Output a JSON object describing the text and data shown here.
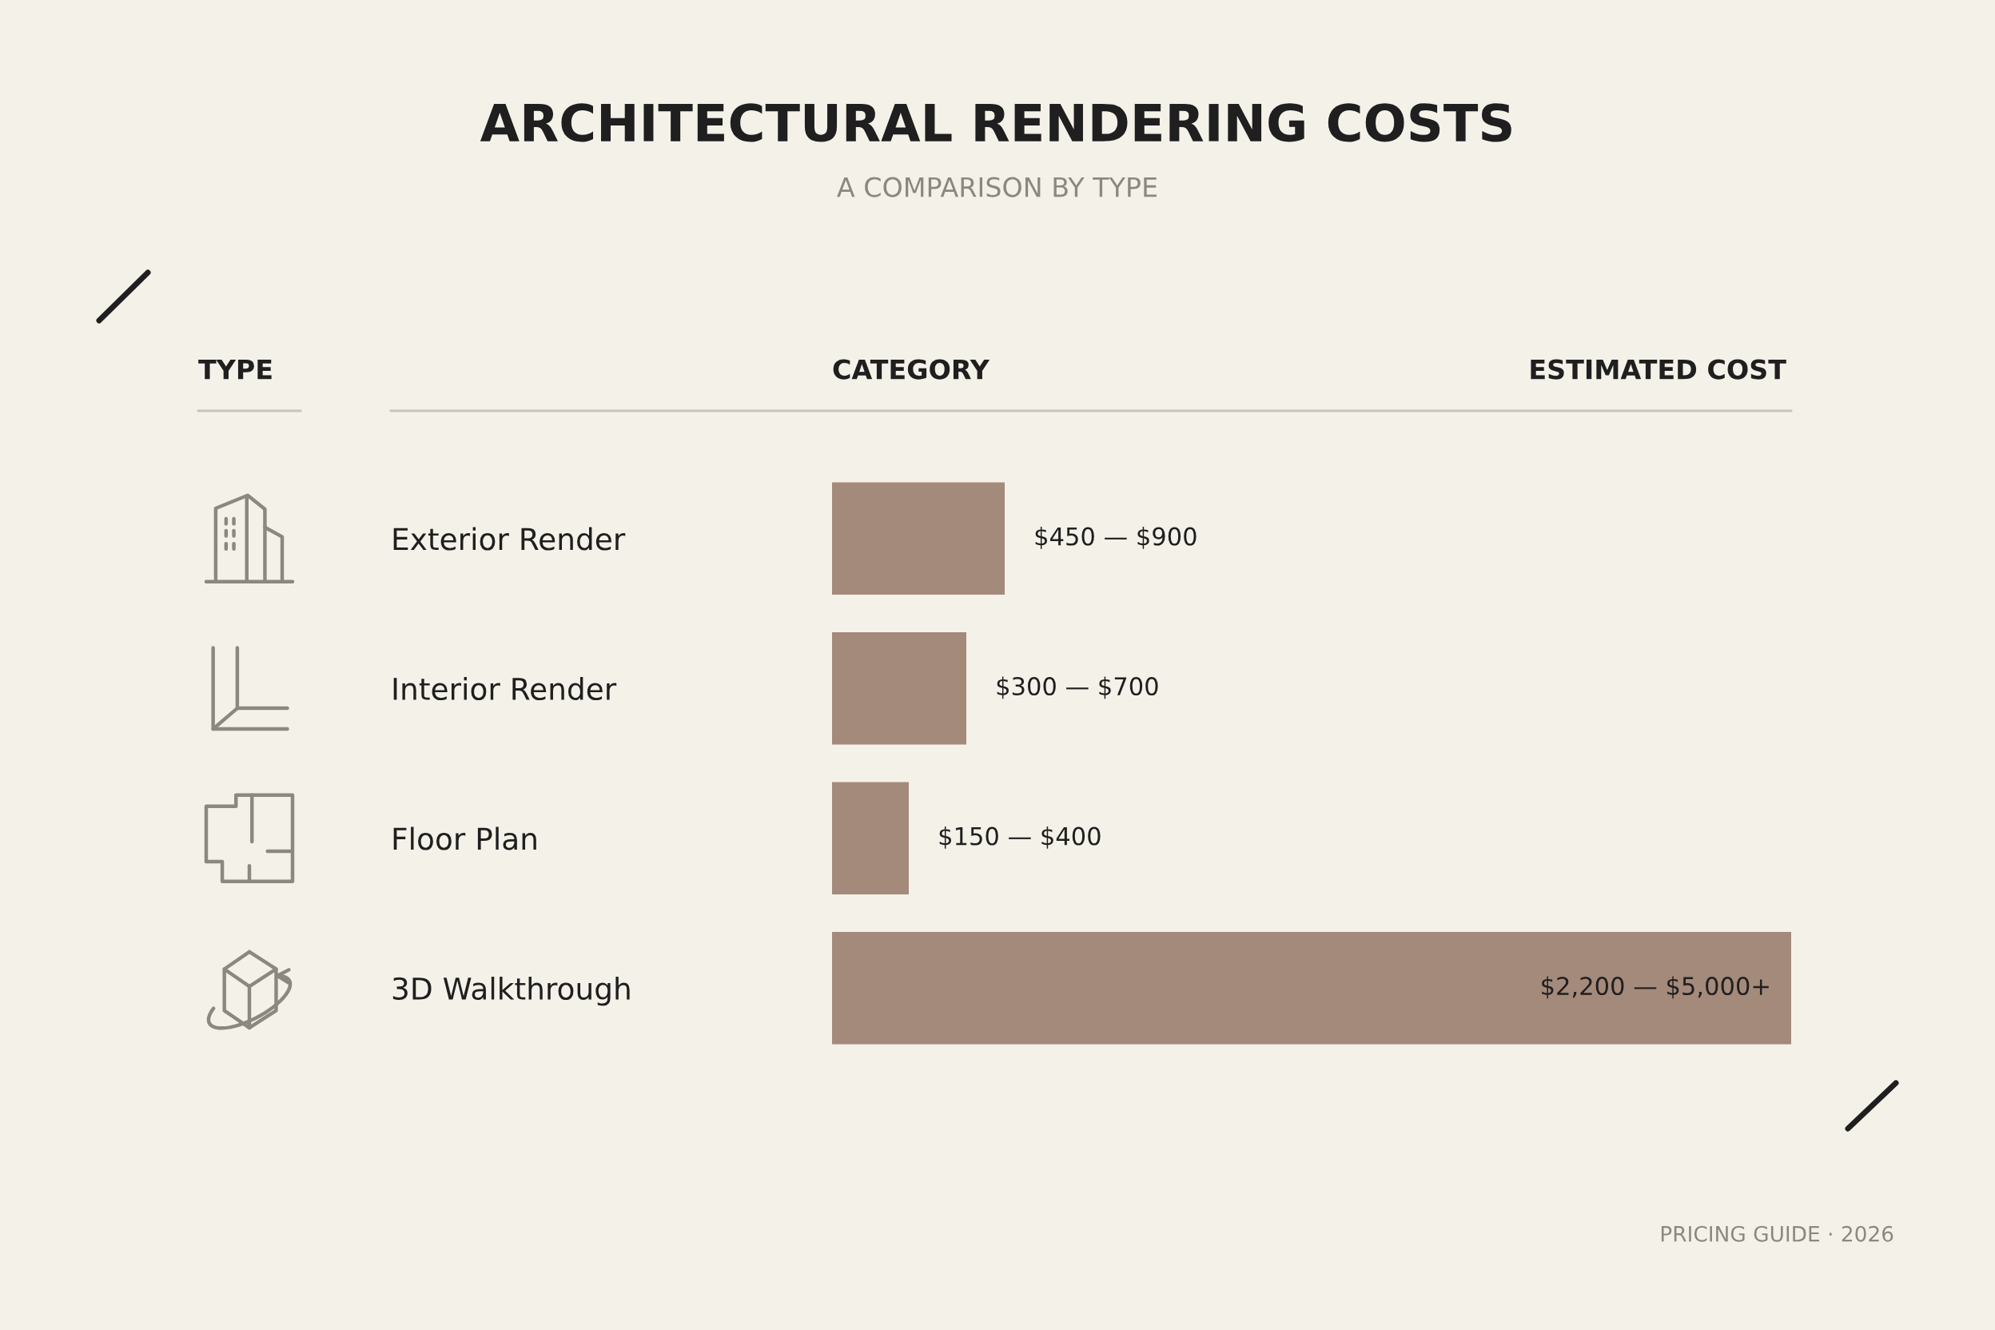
{
  "chart_data": {
    "type": "bar",
    "title": "ARCHITECTURAL RENDERING COSTS",
    "subtitle": "A COMPARISON BY TYPE",
    "orientation": "horizontal",
    "tick_labels": "y",
    "categories": [
      "Exterior Render",
      "Interior Render",
      "Floor Plan",
      "3D Walkthrough"
    ],
    "values": [
      900,
      700,
      400,
      5000
    ],
    "value_labels": [
      "$450 — $900",
      "$300 — $700",
      "$150 — $400",
      "$2,200 — $5,000+"
    ],
    "color": "#a48a7b",
    "annotations": [
      "TYPE",
      "CATEGORY",
      "ESTIMATED COST",
      "PRICING GUIDE · 2026"
    ]
  }
}
